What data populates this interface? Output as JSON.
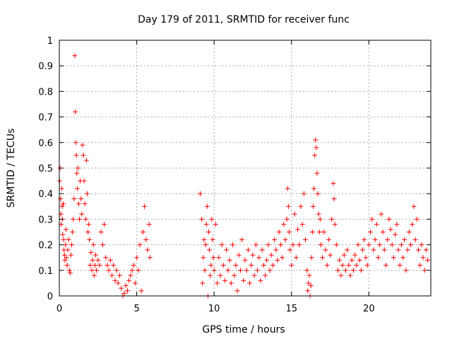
{
  "chart_data": {
    "type": "scatter",
    "title": "Day 179 of 2011, SRMTID for receiver func",
    "xlabel": "GPS time / hours",
    "ylabel": "SRMTID / TECUs",
    "xlim": [
      0,
      24
    ],
    "ylim": [
      0,
      1
    ],
    "xticks": [
      0,
      5,
      10,
      15,
      20
    ],
    "xtick_labels": [
      "0",
      "5",
      "10",
      "15",
      "20"
    ],
    "yticks": [
      0,
      0.1,
      0.2,
      0.3,
      0.4,
      0.5,
      0.6,
      0.7,
      0.8,
      0.9,
      1
    ],
    "ytick_labels": [
      "0",
      "0.1",
      "0.2",
      "0.3",
      "0.4",
      "0.5",
      "0.6",
      "0.7",
      "0.8",
      "0.9",
      "1"
    ],
    "grid": true,
    "marker": "+",
    "color": "#ff0000",
    "points": [
      [
        0.02,
        0.45
      ],
      [
        0.05,
        0.5
      ],
      [
        0.08,
        0.38
      ],
      [
        0.1,
        0.32
      ],
      [
        0.12,
        0.28
      ],
      [
        0.15,
        0.42
      ],
      [
        0.18,
        0.35
      ],
      [
        0.2,
        0.3
      ],
      [
        0.22,
        0.24
      ],
      [
        0.25,
        0.36
      ],
      [
        0.28,
        0.22
      ],
      [
        0.3,
        0.18
      ],
      [
        0.33,
        0.16
      ],
      [
        0.36,
        0.14
      ],
      [
        0.4,
        0.2
      ],
      [
        0.43,
        0.26
      ],
      [
        0.46,
        0.15
      ],
      [
        0.5,
        0.12
      ],
      [
        0.55,
        0.18
      ],
      [
        0.6,
        0.22
      ],
      [
        0.65,
        0.1
      ],
      [
        0.7,
        0.09
      ],
      [
        0.75,
        0.16
      ],
      [
        0.8,
        0.2
      ],
      [
        0.85,
        0.25
      ],
      [
        0.9,
        0.3
      ],
      [
        0.95,
        0.38
      ],
      [
        1.0,
        0.94
      ],
      [
        1.03,
        0.72
      ],
      [
        1.06,
        0.6
      ],
      [
        1.1,
        0.55
      ],
      [
        1.13,
        0.48
      ],
      [
        1.16,
        0.42
      ],
      [
        1.2,
        0.5
      ],
      [
        1.25,
        0.36
      ],
      [
        1.3,
        0.3
      ],
      [
        1.35,
        0.45
      ],
      [
        1.4,
        0.38
      ],
      [
        1.45,
        0.32
      ],
      [
        1.5,
        0.59
      ],
      [
        1.55,
        0.55
      ],
      [
        1.6,
        0.45
      ],
      [
        1.65,
        0.36
      ],
      [
        1.7,
        0.3
      ],
      [
        1.75,
        0.53
      ],
      [
        1.8,
        0.4
      ],
      [
        1.85,
        0.25
      ],
      [
        1.9,
        0.28
      ],
      [
        1.95,
        0.22
      ],
      [
        2.0,
        0.12
      ],
      [
        2.05,
        0.17
      ],
      [
        2.1,
        0.1
      ],
      [
        2.15,
        0.14
      ],
      [
        2.2,
        0.2
      ],
      [
        2.25,
        0.08
      ],
      [
        2.3,
        0.12
      ],
      [
        2.35,
        0.16
      ],
      [
        2.4,
        0.1
      ],
      [
        2.5,
        0.14
      ],
      [
        2.6,
        0.12
      ],
      [
        2.7,
        0.25
      ],
      [
        2.8,
        0.2
      ],
      [
        2.9,
        0.28
      ],
      [
        3.0,
        0.15
      ],
      [
        3.1,
        0.12
      ],
      [
        3.2,
        0.1
      ],
      [
        3.3,
        0.14
      ],
      [
        3.4,
        0.08
      ],
      [
        3.5,
        0.12
      ],
      [
        3.6,
        0.06
      ],
      [
        3.7,
        0.1
      ],
      [
        3.8,
        0.05
      ],
      [
        3.9,
        0.08
      ],
      [
        4.0,
        0.03
      ],
      [
        4.1,
        0.0
      ],
      [
        4.2,
        0.01
      ],
      [
        4.3,
        0.04
      ],
      [
        4.4,
        0.02
      ],
      [
        4.5,
        0.06
      ],
      [
        4.6,
        0.08
      ],
      [
        4.7,
        0.1
      ],
      [
        4.8,
        0.12
      ],
      [
        4.9,
        0.05
      ],
      [
        5.0,
        0.15
      ],
      [
        5.1,
        0.1
      ],
      [
        5.2,
        0.2
      ],
      [
        5.3,
        0.02
      ],
      [
        5.4,
        0.25
      ],
      [
        5.5,
        0.35
      ],
      [
        5.6,
        0.22
      ],
      [
        5.7,
        0.18
      ],
      [
        5.8,
        0.28
      ],
      [
        5.85,
        0.15
      ],
      [
        9.1,
        0.4
      ],
      [
        9.2,
        0.3
      ],
      [
        9.25,
        0.05
      ],
      [
        9.3,
        0.15
      ],
      [
        9.35,
        0.22
      ],
      [
        9.4,
        0.1
      ],
      [
        9.45,
        0.2
      ],
      [
        9.5,
        0.28
      ],
      [
        9.55,
        0.35
      ],
      [
        9.6,
        0.0
      ],
      [
        9.65,
        0.25
      ],
      [
        9.7,
        0.18
      ],
      [
        9.75,
        0.08
      ],
      [
        9.8,
        0.12
      ],
      [
        9.85,
        0.3
      ],
      [
        9.9,
        0.22
      ],
      [
        9.95,
        0.15
      ],
      [
        10.0,
        0.1
      ],
      [
        10.1,
        0.28
      ],
      [
        10.2,
        0.05
      ],
      [
        10.3,
        0.15
      ],
      [
        10.4,
        0.08
      ],
      [
        10.5,
        0.2
      ],
      [
        10.6,
        0.12
      ],
      [
        10.7,
        0.06
      ],
      [
        10.8,
        0.18
      ],
      [
        10.9,
        0.1
      ],
      [
        11.0,
        0.14
      ],
      [
        11.1,
        0.05
      ],
      [
        11.2,
        0.2
      ],
      [
        11.3,
        0.08
      ],
      [
        11.4,
        0.12
      ],
      [
        11.5,
        0.02
      ],
      [
        11.6,
        0.16
      ],
      [
        11.7,
        0.1
      ],
      [
        11.8,
        0.22
      ],
      [
        11.9,
        0.06
      ],
      [
        12.0,
        0.14
      ],
      [
        12.1,
        0.1
      ],
      [
        12.2,
        0.18
      ],
      [
        12.3,
        0.05
      ],
      [
        12.4,
        0.12
      ],
      [
        12.5,
        0.16
      ],
      [
        12.6,
        0.08
      ],
      [
        12.7,
        0.2
      ],
      [
        12.8,
        0.1
      ],
      [
        12.9,
        0.15
      ],
      [
        13.0,
        0.06
      ],
      [
        13.1,
        0.18
      ],
      [
        13.2,
        0.12
      ],
      [
        13.3,
        0.08
      ],
      [
        13.4,
        0.14
      ],
      [
        13.5,
        0.2
      ],
      [
        13.6,
        0.1
      ],
      [
        13.7,
        0.16
      ],
      [
        13.8,
        0.12
      ],
      [
        13.9,
        0.22
      ],
      [
        14.0,
        0.18
      ],
      [
        14.1,
        0.14
      ],
      [
        14.2,
        0.25
      ],
      [
        14.3,
        0.2
      ],
      [
        14.4,
        0.15
      ],
      [
        14.5,
        0.28
      ],
      [
        14.6,
        0.22
      ],
      [
        14.7,
        0.3
      ],
      [
        14.75,
        0.42
      ],
      [
        14.8,
        0.35
      ],
      [
        14.85,
        0.25
      ],
      [
        14.9,
        0.18
      ],
      [
        15.0,
        0.12
      ],
      [
        15.1,
        0.2
      ],
      [
        15.2,
        0.32
      ],
      [
        15.3,
        0.15
      ],
      [
        15.4,
        0.26
      ],
      [
        15.5,
        0.2
      ],
      [
        15.6,
        0.35
      ],
      [
        15.7,
        0.28
      ],
      [
        15.8,
        0.4
      ],
      [
        15.9,
        0.22
      ],
      [
        16.0,
        0.1
      ],
      [
        16.05,
        0.02
      ],
      [
        16.1,
        0.05
      ],
      [
        16.15,
        0.08
      ],
      [
        16.2,
        0.0
      ],
      [
        16.25,
        0.04
      ],
      [
        16.3,
        0.15
      ],
      [
        16.35,
        0.25
      ],
      [
        16.4,
        0.35
      ],
      [
        16.45,
        0.42
      ],
      [
        16.5,
        0.55
      ],
      [
        16.55,
        0.61
      ],
      [
        16.6,
        0.58
      ],
      [
        16.65,
        0.48
      ],
      [
        16.7,
        0.4
      ],
      [
        16.75,
        0.32
      ],
      [
        16.8,
        0.25
      ],
      [
        16.85,
        0.3
      ],
      [
        16.9,
        0.2
      ],
      [
        17.0,
        0.15
      ],
      [
        17.1,
        0.25
      ],
      [
        17.2,
        0.18
      ],
      [
        17.3,
        0.12
      ],
      [
        17.4,
        0.22
      ],
      [
        17.5,
        0.16
      ],
      [
        17.6,
        0.3
      ],
      [
        17.7,
        0.44
      ],
      [
        17.75,
        0.38
      ],
      [
        17.8,
        0.28
      ],
      [
        17.9,
        0.2
      ],
      [
        18.0,
        0.1
      ],
      [
        18.1,
        0.14
      ],
      [
        18.2,
        0.08
      ],
      [
        18.3,
        0.12
      ],
      [
        18.4,
        0.16
      ],
      [
        18.5,
        0.1
      ],
      [
        18.6,
        0.18
      ],
      [
        18.7,
        0.12
      ],
      [
        18.8,
        0.08
      ],
      [
        18.9,
        0.14
      ],
      [
        19.0,
        0.1
      ],
      [
        19.1,
        0.16
      ],
      [
        19.2,
        0.12
      ],
      [
        19.3,
        0.2
      ],
      [
        19.4,
        0.14
      ],
      [
        19.5,
        0.1
      ],
      [
        19.6,
        0.18
      ],
      [
        19.7,
        0.22
      ],
      [
        19.8,
        0.15
      ],
      [
        19.9,
        0.12
      ],
      [
        20.0,
        0.2
      ],
      [
        20.1,
        0.25
      ],
      [
        20.2,
        0.3
      ],
      [
        20.3,
        0.18
      ],
      [
        20.4,
        0.22
      ],
      [
        20.5,
        0.28
      ],
      [
        20.6,
        0.15
      ],
      [
        20.7,
        0.2
      ],
      [
        20.8,
        0.32
      ],
      [
        20.9,
        0.25
      ],
      [
        21.0,
        0.18
      ],
      [
        21.1,
        0.12
      ],
      [
        21.2,
        0.22
      ],
      [
        21.3,
        0.3
      ],
      [
        21.4,
        0.26
      ],
      [
        21.5,
        0.2
      ],
      [
        21.6,
        0.15
      ],
      [
        21.7,
        0.24
      ],
      [
        21.8,
        0.28
      ],
      [
        21.9,
        0.18
      ],
      [
        22.0,
        0.12
      ],
      [
        22.1,
        0.2
      ],
      [
        22.2,
        0.15
      ],
      [
        22.3,
        0.22
      ],
      [
        22.4,
        0.1
      ],
      [
        22.5,
        0.18
      ],
      [
        22.6,
        0.25
      ],
      [
        22.7,
        0.2
      ],
      [
        22.8,
        0.28
      ],
      [
        22.9,
        0.35
      ],
      [
        23.0,
        0.22
      ],
      [
        23.1,
        0.3
      ],
      [
        23.2,
        0.18
      ],
      [
        23.3,
        0.12
      ],
      [
        23.4,
        0.2
      ],
      [
        23.5,
        0.15
      ],
      [
        23.6,
        0.1
      ],
      [
        23.7,
        0.18
      ],
      [
        23.8,
        0.14
      ]
    ]
  }
}
